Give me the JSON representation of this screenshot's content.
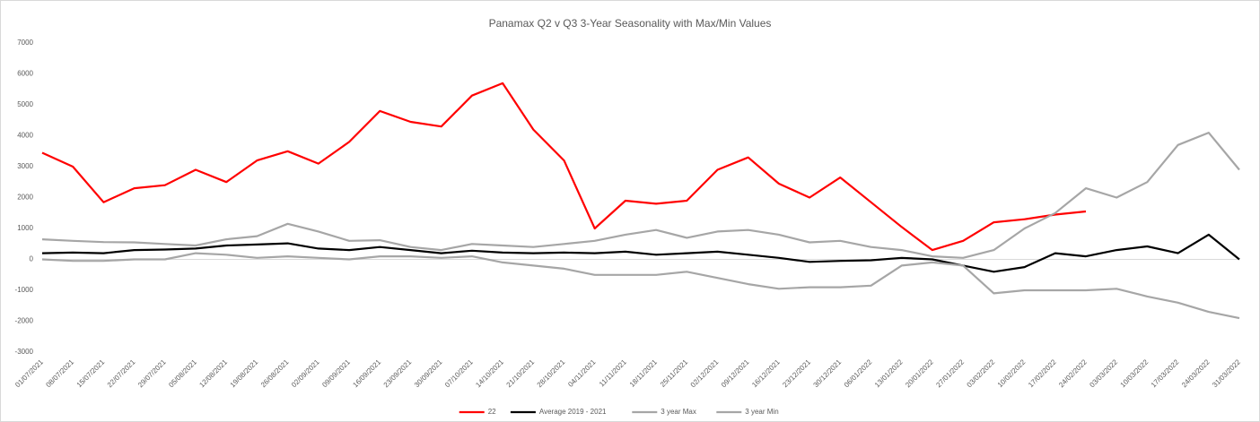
{
  "chart_data": {
    "type": "line",
    "title": "Panamax Q2 v Q3 3-Year Seasonality with Max/Min Values",
    "categories": [
      "01/07/2021",
      "08/07/2021",
      "15/07/2021",
      "22/07/2021",
      "29/07/2021",
      "05/08/2021",
      "12/08/2021",
      "19/08/2021",
      "26/08/2021",
      "02/09/2021",
      "09/09/2021",
      "16/09/2021",
      "23/09/2021",
      "30/09/2021",
      "07/10/2021",
      "14/10/2021",
      "21/10/2021",
      "28/10/2021",
      "04/11/2021",
      "11/11/2021",
      "18/11/2021",
      "25/11/2021",
      "02/12/2021",
      "09/12/2021",
      "16/12/2021",
      "23/12/2021",
      "30/12/2021",
      "06/01/2022",
      "13/01/2022",
      "20/01/2022",
      "27/01/2022",
      "03/02/2022",
      "10/02/2022",
      "17/02/2022",
      "24/02/2022",
      "03/03/2022",
      "10/03/2022",
      "17/03/2022",
      "24/03/2022",
      "31/03/2022"
    ],
    "series": [
      {
        "name": "22",
        "color": "#ff0000",
        "values": [
          3450,
          3000,
          1850,
          2300,
          2400,
          2900,
          2500,
          3200,
          3500,
          3100,
          3800,
          4800,
          4450,
          4300,
          5300,
          5700,
          4200,
          3200,
          1000,
          1900,
          1800,
          1900,
          2900,
          3300,
          2450,
          2000,
          2650,
          1850,
          1050,
          300,
          600,
          1200,
          1300,
          1450,
          1550,
          null,
          null,
          null,
          null,
          null
        ]
      },
      {
        "name": "Average 2019 - 2021",
        "color": "#000000",
        "values": [
          200,
          220,
          200,
          300,
          320,
          350,
          450,
          480,
          520,
          350,
          300,
          400,
          300,
          200,
          280,
          220,
          200,
          220,
          200,
          250,
          150,
          200,
          250,
          150,
          50,
          -80,
          -50,
          -30,
          50,
          0,
          -200,
          -400,
          -250,
          200,
          100,
          300,
          420,
          200,
          800,
          0
        ]
      },
      {
        "name": "3 year Max",
        "color": "#a6a6a6",
        "values": [
          650,
          600,
          560,
          550,
          500,
          450,
          650,
          750,
          1150,
          900,
          600,
          620,
          400,
          300,
          500,
          450,
          400,
          500,
          600,
          800,
          950,
          700,
          900,
          950,
          800,
          550,
          600,
          400,
          300,
          100,
          50,
          300,
          1000,
          1500,
          2300,
          2000,
          2500,
          3700,
          4100,
          2900
        ]
      },
      {
        "name": "3 year Min",
        "color": "#a6a6a6",
        "values": [
          0,
          -50,
          -50,
          0,
          0,
          200,
          150,
          50,
          100,
          50,
          0,
          100,
          100,
          50,
          100,
          -100,
          -200,
          -300,
          -500,
          -500,
          -500,
          -400,
          -600,
          -800,
          -950,
          -900,
          -900,
          -850,
          -200,
          -100,
          -200,
          -1100,
          -1000,
          -1000,
          -1000,
          -950,
          -1200,
          -1400,
          -1700,
          -1900
        ]
      }
    ],
    "ylim": [
      -3000,
      7000
    ],
    "yticks": [
      -3000,
      -2000,
      -1000,
      0,
      1000,
      2000,
      3000,
      4000,
      5000,
      6000,
      7000
    ],
    "grid": false
  }
}
